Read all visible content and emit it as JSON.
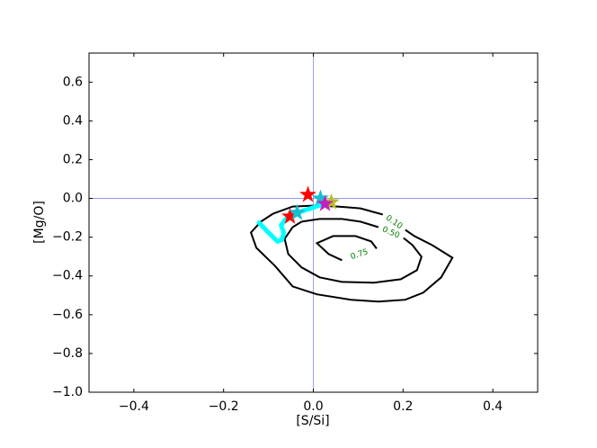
{
  "chart_data": {
    "type": "contour",
    "xlabel": "[S/Si]",
    "ylabel": "[Mg/O]",
    "xlim": [
      -0.5,
      0.5
    ],
    "ylim": [
      -1.0,
      0.75
    ],
    "xticks": [
      {
        "value": -0.4,
        "label": "−0.4"
      },
      {
        "value": -0.2,
        "label": "−0.2"
      },
      {
        "value": 0,
        "label": "0.0"
      },
      0.2,
      0.4
    ],
    "yticks": [
      {
        "value": -1.0,
        "label": "−1.0"
      },
      {
        "value": -0.8,
        "label": "−0.8"
      },
      {
        "value": -0.6,
        "label": "−0.6"
      },
      {
        "value": -0.4,
        "label": "−0.4"
      },
      {
        "value": -0.2,
        "label": "−0.2"
      },
      {
        "value": 0,
        "label": "0.0"
      },
      0.2,
      0.4,
      0.6
    ],
    "axhline": 0,
    "axvline": 0,
    "reference_color": "#7f8cf0",
    "contour_color": "#000000",
    "contour_label_color": "#008000",
    "contours": [
      {
        "label": "0.10",
        "x": [
          -0.09,
          -0.117,
          -0.139,
          -0.127,
          -0.086,
          -0.046,
          0.008,
          0.084,
          0.145,
          0.205,
          0.245,
          0.285,
          0.31,
          0.265,
          0.225,
          0.205,
          null,
          0.155,
          0.105,
          0.054,
          0.004,
          -0.046,
          -0.09
        ],
        "y": [
          -0.079,
          -0.12,
          -0.176,
          -0.255,
          -0.347,
          -0.454,
          -0.495,
          -0.523,
          -0.532,
          -0.523,
          -0.486,
          -0.407,
          -0.306,
          -0.241,
          -0.194,
          -0.162,
          null,
          -0.083,
          -0.051,
          -0.042,
          -0.037,
          -0.042,
          -0.079
        ]
      },
      {
        "label": "0.50",
        "x": [
          -0.026,
          -0.046,
          -0.064,
          -0.056,
          -0.026,
          0.014,
          0.064,
          0.135,
          0.195,
          0.231,
          0.241,
          0.221,
          0.201,
          null,
          0.145,
          0.105,
          0.064,
          0.014,
          -0.026
        ],
        "y": [
          -0.12,
          -0.148,
          -0.208,
          -0.287,
          -0.356,
          -0.407,
          -0.431,
          -0.435,
          -0.417,
          -0.37,
          -0.301,
          -0.241,
          -0.204,
          null,
          -0.148,
          -0.12,
          -0.106,
          -0.106,
          -0.12
        ]
      },
      {
        "label": "0.75",
        "x": [
          0.141,
          0.129,
          0.094,
          0.044,
          0.008,
          0.034,
          0.064,
          null,
          0.141
        ],
        "y": [
          -0.259,
          -0.222,
          -0.194,
          -0.194,
          -0.231,
          -0.287,
          -0.319,
          null,
          -0.259
        ]
      }
    ],
    "line": {
      "color": "#00ffff",
      "x": [
        -0.121,
        -0.104,
        -0.09,
        -0.08,
        -0.07,
        -0.066,
        -0.072,
        -0.06,
        -0.036,
        -0.006,
        0.024
      ],
      "y": [
        -0.125,
        -0.167,
        -0.199,
        -0.222,
        -0.213,
        -0.176,
        -0.139,
        -0.102,
        -0.074,
        -0.051,
        -0.028
      ]
    },
    "stars": [
      {
        "color": "#ff0000",
        "x": -0.052,
        "y": -0.093
      },
      {
        "color": "#17becf",
        "x": -0.036,
        "y": -0.074
      },
      {
        "color": "#ff0000",
        "x": -0.012,
        "y": 0.019
      },
      {
        "color": "#17becf",
        "x": 0.016,
        "y": 0.0
      },
      {
        "color": "#bcbd22",
        "x": 0.04,
        "y": -0.019
      },
      {
        "color": "#c020c0",
        "x": 0.026,
        "y": -0.028
      }
    ]
  }
}
